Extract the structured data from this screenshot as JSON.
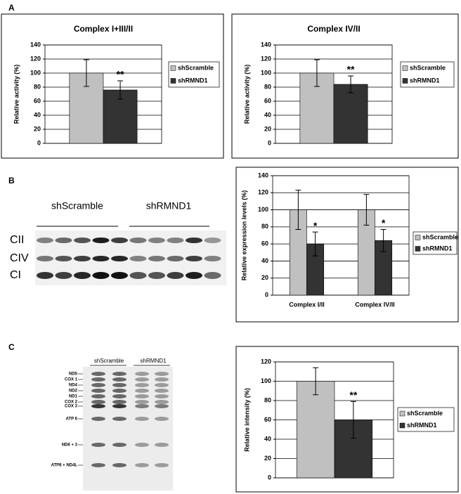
{
  "panels": [
    "A",
    "B",
    "C"
  ],
  "blot_b": {
    "groups": [
      "shScramble",
      "shRMND1"
    ],
    "bands": [
      "CII",
      "CIV",
      "CI"
    ]
  },
  "blot_c": {
    "groups": [
      "shScramble",
      "shRMND1"
    ],
    "bands": [
      "ND5",
      "COX 1",
      "ND4",
      "ND2",
      "ND1",
      "COX 2",
      "COX 3",
      "ATP 6",
      "ND6 + 3",
      "ATP8 + ND4L"
    ]
  },
  "chart_data": [
    {
      "type": "bar",
      "title": "Complex I+III/II",
      "y_label": "Relative activity (%)",
      "categories": [
        null
      ],
      "series": [
        {
          "name": "shScramble",
          "color": "#c0c0c0",
          "values": [
            100
          ],
          "errors": [
            19
          ]
        },
        {
          "name": "shRMND1",
          "color": "#333333",
          "values": [
            76
          ],
          "errors": [
            13
          ],
          "annotations": [
            "**"
          ]
        }
      ],
      "ylim": [
        0,
        140
      ],
      "yticks": [
        0,
        20,
        40,
        60,
        80,
        100,
        120,
        140
      ],
      "grid": true,
      "legend": "right"
    },
    {
      "type": "bar",
      "title": "Complex IV/II",
      "y_label": "Relative activity (%)",
      "categories": [
        null
      ],
      "series": [
        {
          "name": "shScramble",
          "color": "#c0c0c0",
          "values": [
            100
          ],
          "errors": [
            19
          ]
        },
        {
          "name": "shRMND1",
          "color": "#333333",
          "values": [
            84
          ],
          "errors": [
            12
          ],
          "annotations": [
            "**"
          ]
        }
      ],
      "ylim": [
        0,
        140
      ],
      "yticks": [
        0,
        20,
        40,
        60,
        80,
        100,
        120,
        140
      ],
      "grid": true,
      "legend": "right"
    },
    {
      "type": "bar",
      "y_label": "Relative expression levels (%)",
      "categories": [
        "Complex I/II",
        "Complex IV/II"
      ],
      "series": [
        {
          "name": "shScramble",
          "color": "#c0c0c0",
          "values": [
            100,
            100
          ],
          "errors": [
            23,
            18
          ]
        },
        {
          "name": "shRMND1",
          "color": "#333333",
          "values": [
            60,
            64
          ],
          "errors": [
            14,
            13
          ],
          "annotations": [
            "*",
            "*"
          ]
        }
      ],
      "ylim": [
        0,
        140
      ],
      "yticks": [
        0,
        20,
        40,
        60,
        80,
        100,
        120,
        140
      ],
      "grid": true,
      "legend": "right"
    },
    {
      "type": "bar",
      "y_label": "Relative intensity (%)",
      "categories": [
        null
      ],
      "series": [
        {
          "name": "shScramble",
          "color": "#c0c0c0",
          "values": [
            100
          ],
          "errors": [
            14
          ]
        },
        {
          "name": "shRMND1",
          "color": "#333333",
          "values": [
            60
          ],
          "errors": [
            19
          ],
          "annotations": [
            "**"
          ]
        }
      ],
      "ylim": [
        0,
        120
      ],
      "yticks": [
        0,
        20,
        40,
        60,
        80,
        100,
        120
      ],
      "grid": true,
      "legend": "right"
    }
  ]
}
